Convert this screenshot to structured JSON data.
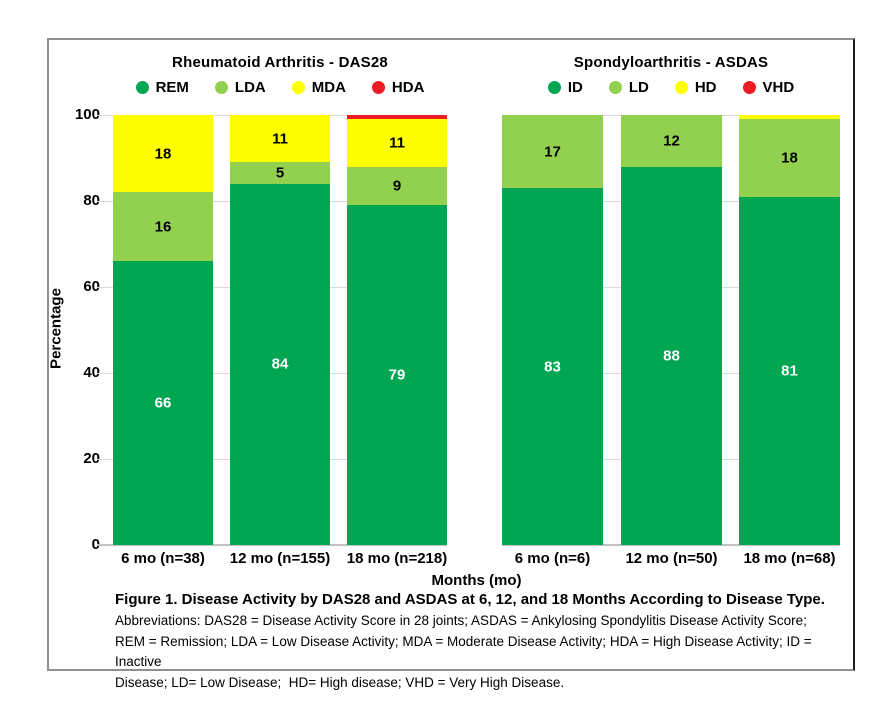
{
  "figure": {
    "y_axis_label": "Percentage",
    "y_ticks": [
      0,
      20,
      40,
      60,
      80,
      100
    ],
    "x_axis_label": "Months (mo)",
    "caption": {
      "title": "Figure 1. Disease Activity by DAS28 and ASDAS at 6, 12, and 18 Months According to Disease Type.",
      "lines": [
        "Abbreviations: DAS28 = Disease Activity Score in 28 joints; ASDAS = Ankylosing Spondylitis Disease Activity Score;",
        "REM = Remission; LDA = Low Disease Activity; MDA = Moderate Disease Activity; HDA = High Disease Activity; ID = Inactive",
        "Disease; LD= Low Disease;  HD= High disease; VHD = Very High Disease."
      ]
    }
  },
  "colors": {
    "remission_green": "#00A651",
    "low_green": "#92D050",
    "moderate_yellow": "#FFFF00",
    "high_red": "#ED1C24",
    "gridline_gray": "#D9D9D9",
    "frame_gray": "#8F8F8F"
  },
  "chart_data": [
    {
      "type": "bar",
      "stacked": true,
      "title": "Rheumatoid Arthritis - DAS28",
      "xlabel": "Months (mo)",
      "ylabel": "Percentage",
      "ylim": [
        0,
        100
      ],
      "grid": true,
      "legend_position": "top",
      "categories": [
        "6 mo (n=38)",
        "12 mo (n=155)",
        "18 mo (n=218)"
      ],
      "series": [
        {
          "name": "REM",
          "color": "#00A651",
          "values": [
            66,
            84,
            79
          ]
        },
        {
          "name": "LDA",
          "color": "#92D050",
          "values": [
            16,
            5,
            9
          ]
        },
        {
          "name": "MDA",
          "color": "#FFFF00",
          "values": [
            18,
            11,
            11
          ]
        },
        {
          "name": "HDA",
          "color": "#ED1C24",
          "values": [
            0,
            0,
            1
          ]
        }
      ]
    },
    {
      "type": "bar",
      "stacked": true,
      "title": "Spondyloarthritis - ASDAS",
      "xlabel": "Months (mo)",
      "ylabel": "Percentage",
      "ylim": [
        0,
        100
      ],
      "grid": true,
      "legend_position": "top",
      "categories": [
        "6 mo (n=6)",
        "12 mo (n=50)",
        "18 mo (n=68)"
      ],
      "series": [
        {
          "name": "ID",
          "color": "#00A651",
          "values": [
            83,
            88,
            81
          ]
        },
        {
          "name": "LD",
          "color": "#92D050",
          "values": [
            17,
            12,
            18
          ]
        },
        {
          "name": "HD",
          "color": "#FFFF00",
          "values": [
            0,
            0,
            1
          ]
        },
        {
          "name": "VHD",
          "color": "#ED1C24",
          "values": [
            0,
            0,
            0
          ]
        }
      ]
    }
  ]
}
